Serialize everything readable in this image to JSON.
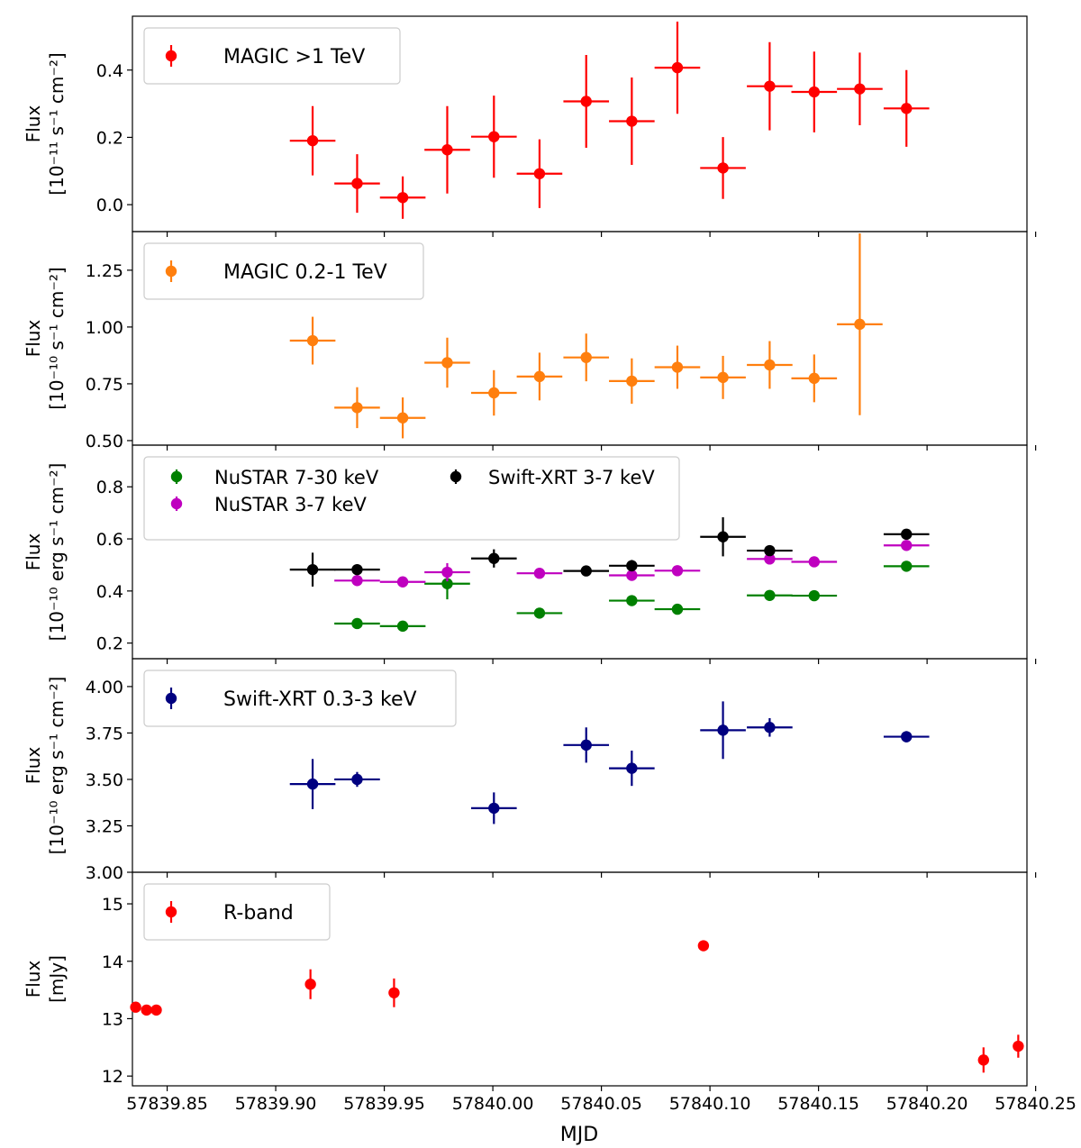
{
  "chart_data": {
    "type": "scatter",
    "x_axis": {
      "label": "MJD",
      "range": [
        57839.834,
        57840.246
      ],
      "ticks": [
        "57839.85",
        "57839.90",
        "57839.95",
        "57840.00",
        "57840.05",
        "57840.10",
        "57840.15",
        "57840.20",
        "57840.25"
      ],
      "tick_values": [
        57839.85,
        57839.9,
        57839.95,
        57840.0,
        57840.05,
        57840.1,
        57840.15,
        57840.2,
        57840.25
      ]
    },
    "panels": [
      {
        "ylabel_line1": "Flux",
        "ylabel_line2": "[10⁻¹¹ s⁻¹ cm⁻²]",
        "ylim": [
          -0.08,
          0.56
        ],
        "yticks": [
          0.0,
          0.2,
          0.4
        ],
        "yticklabels": [
          "0.0",
          "0.2",
          "0.4"
        ],
        "legend_position": "upper-left",
        "series": [
          {
            "name": "MAGIC >1 TeV",
            "color": "#ff0000",
            "x": [
              57839.917,
              57839.9375,
              57839.9585,
              57839.979,
              57840.0005,
              57840.0215,
              57840.043,
              57840.064,
              57840.085,
              57840.106,
              57840.1275,
              57840.148,
              57840.169,
              57840.1905
            ],
            "xerr": [
              0.0105,
              0.0105,
              0.0105,
              0.0105,
              0.0105,
              0.0105,
              0.0105,
              0.0105,
              0.0105,
              0.0105,
              0.0105,
              0.0105,
              0.0105,
              0.0105
            ],
            "y": [
              0.19,
              0.063,
              0.021,
              0.163,
              0.202,
              0.092,
              0.307,
              0.248,
              0.407,
              0.109,
              0.352,
              0.335,
              0.344,
              0.286
            ],
            "yerr": [
              0.103,
              0.087,
              0.063,
              0.13,
              0.122,
              0.102,
              0.138,
              0.13,
              0.137,
              0.092,
              0.131,
              0.12,
              0.108,
              0.114
            ]
          }
        ]
      },
      {
        "ylabel_line1": "Flux",
        "ylabel_line2": "[10⁻¹⁰ s⁻¹ cm⁻²]",
        "ylim": [
          0.48,
          1.42
        ],
        "yticks": [
          0.5,
          0.75,
          1.0,
          1.25
        ],
        "yticklabels": [
          "0.50",
          "0.75",
          "1.00",
          "1.25"
        ],
        "legend_position": "upper-left",
        "series": [
          {
            "name": "MAGIC 0.2-1 TeV",
            "color": "#ff7f0e",
            "x": [
              57839.917,
              57839.9375,
              57839.9585,
              57839.979,
              57840.0005,
              57840.0215,
              57840.043,
              57840.064,
              57840.085,
              57840.106,
              57840.1275,
              57840.148,
              57840.169
            ],
            "xerr": [
              0.0105,
              0.0105,
              0.0105,
              0.0105,
              0.0105,
              0.0105,
              0.0105,
              0.0105,
              0.0105,
              0.0105,
              0.0105,
              0.0105,
              0.0105
            ],
            "y": [
              0.94,
              0.645,
              0.6,
              0.843,
              0.71,
              0.782,
              0.866,
              0.762,
              0.823,
              0.778,
              0.833,
              0.774,
              1.012
            ],
            "yerr": [
              0.105,
              0.09,
              0.09,
              0.11,
              0.1,
              0.105,
              0.105,
              0.1,
              0.095,
              0.095,
              0.105,
              0.105,
              0.4
            ]
          }
        ]
      },
      {
        "ylabel_line1": "Flux",
        "ylabel_line2": "[10⁻¹⁰ erg s⁻¹ cm⁻²]",
        "ylim": [
          0.14,
          0.96
        ],
        "yticks": [
          0.2,
          0.4,
          0.6,
          0.8
        ],
        "yticklabels": [
          "0.2",
          "0.4",
          "0.6",
          "0.8"
        ],
        "legend_position": "upper-left",
        "series": [
          {
            "name": "NuSTAR 7-30 keV",
            "color": "#008000",
            "x": [
              57839.9375,
              57839.9585,
              57839.979,
              57840.0215,
              57840.064,
              57840.085,
              57840.1275,
              57840.148,
              57840.1905
            ],
            "xerr": [
              0.0105,
              0.0105,
              0.0105,
              0.0105,
              0.0105,
              0.0105,
              0.0105,
              0.0105,
              0.0105
            ],
            "y": [
              0.275,
              0.265,
              0.428,
              0.315,
              0.363,
              0.33,
              0.383,
              0.382,
              0.495
            ],
            "yerr": [
              0.008,
              0.008,
              0.06,
              0.008,
              0.02,
              0.008,
              0.008,
              0.008,
              0.008
            ]
          },
          {
            "name": "NuSTAR 3-7 keV",
            "color": "#bf00bf",
            "x": [
              57839.9375,
              57839.9585,
              57839.979,
              57840.0215,
              57840.064,
              57840.085,
              57840.1275,
              57840.148,
              57840.1905
            ],
            "xerr": [
              0.0105,
              0.0105,
              0.0105,
              0.0105,
              0.0105,
              0.0105,
              0.0105,
              0.0105,
              0.0105
            ],
            "y": [
              0.44,
              0.435,
              0.472,
              0.468,
              0.46,
              0.478,
              0.523,
              0.512,
              0.575
            ],
            "yerr": [
              0.008,
              0.008,
              0.035,
              0.008,
              0.02,
              0.008,
              0.008,
              0.008,
              0.008
            ]
          },
          {
            "name": "Swift-XRT 3-7 keV",
            "color": "#000000",
            "x": [
              57839.917,
              57839.9375,
              57840.0005,
              57840.043,
              57840.064,
              57840.106,
              57840.1275,
              57840.1905
            ],
            "xerr": [
              0.0105,
              0.0105,
              0.0105,
              0.0105,
              0.0105,
              0.0105,
              0.0105,
              0.0105
            ],
            "y": [
              0.482,
              0.482,
              0.525,
              0.477,
              0.497,
              0.608,
              0.555,
              0.618
            ],
            "yerr": [
              0.065,
              0.01,
              0.035,
              0.02,
              0.022,
              0.075,
              0.015,
              0.01
            ]
          }
        ]
      },
      {
        "ylabel_line1": "Flux",
        "ylabel_line2": "[10⁻¹⁰ erg s⁻¹ cm⁻²]",
        "ylim": [
          3.0,
          4.15
        ],
        "yticks": [
          3.0,
          3.25,
          3.5,
          3.75,
          4.0
        ],
        "yticklabels": [
          "3.00",
          "3.25",
          "3.50",
          "3.75",
          "4.00"
        ],
        "legend_position": "upper-left",
        "series": [
          {
            "name": "Swift-XRT 0.3-3 keV",
            "color": "#000080",
            "x": [
              57839.917,
              57839.9375,
              57840.0005,
              57840.043,
              57840.064,
              57840.106,
              57840.1275,
              57840.1905
            ],
            "xerr": [
              0.0105,
              0.0105,
              0.0105,
              0.0105,
              0.0105,
              0.0105,
              0.0105,
              0.0105
            ],
            "y": [
              3.475,
              3.5,
              3.345,
              3.685,
              3.56,
              3.765,
              3.78,
              3.73
            ],
            "yerr": [
              0.135,
              0.04,
              0.085,
              0.095,
              0.095,
              0.155,
              0.05,
              0.03
            ]
          }
        ]
      },
      {
        "ylabel_line1": "Flux",
        "ylabel_line2": "[mJy]",
        "ylim": [
          11.83,
          15.55
        ],
        "yticks": [
          12,
          13,
          14,
          15
        ],
        "yticklabels": [
          "12",
          "13",
          "14",
          "15"
        ],
        "legend_position": "upper-left",
        "series": [
          {
            "name": "R-band",
            "color": "#ff0000",
            "x": [
              57839.8355,
              57839.8405,
              57839.845,
              57839.916,
              57839.9545,
              57840.097,
              57840.226,
              57840.242
            ],
            "xerr": [
              0,
              0,
              0,
              0,
              0,
              0,
              0,
              0
            ],
            "y": [
              13.2,
              13.15,
              13.15,
              13.6,
              13.45,
              14.27,
              12.28,
              12.52
            ],
            "yerr": [
              0.04,
              0.04,
              0.04,
              0.26,
              0.25,
              0.06,
              0.22,
              0.2
            ]
          }
        ]
      }
    ]
  }
}
